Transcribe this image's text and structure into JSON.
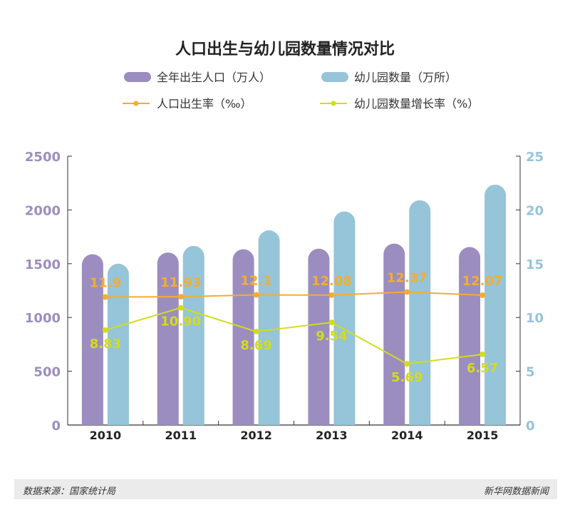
{
  "chart_data": {
    "type": "bar",
    "title": "人口出生与幼儿园数量情况对比",
    "categories": [
      "2010",
      "2011",
      "2012",
      "2013",
      "2014",
      "2015"
    ],
    "series": [
      {
        "name": "全年出生人口（万人）",
        "kind": "bar",
        "axis": "left",
        "color": "#9b8dc0",
        "values": [
          1588,
          1604,
          1635,
          1640,
          1687,
          1655
        ]
      },
      {
        "name": "幼儿园数量（万所）",
        "kind": "bar",
        "axis": "left",
        "color": "#96c4d8",
        "values": [
          1500,
          1665,
          1810,
          1985,
          2090,
          2235
        ]
      },
      {
        "name": "人口出生率（‰）",
        "kind": "line",
        "axis": "right",
        "color": "#f5ad2f",
        "values": [
          11.9,
          11.93,
          12.1,
          12.08,
          12.37,
          12.07
        ],
        "labels": [
          "11.9",
          "11.93",
          "12.1",
          "12.08",
          "12.37",
          "12.07"
        ]
      },
      {
        "name": "幼儿园数量增长率（%）",
        "kind": "line",
        "axis": "right",
        "color": "#d4dc1a",
        "values": [
          8.83,
          10.9,
          8.69,
          9.54,
          5.69,
          6.57
        ],
        "labels": [
          "8.83",
          "10.90",
          "8.69",
          "9.54",
          "5.69",
          "6.57"
        ]
      }
    ],
    "left_axis": {
      "range": [
        0,
        2500
      ],
      "ticks": [
        "0",
        "500",
        "1000",
        "1500",
        "2000",
        "2500"
      ],
      "color": "#9b8dc0"
    },
    "right_axis": {
      "range": [
        0,
        25
      ],
      "ticks": [
        "0",
        "5",
        "10",
        "15",
        "20",
        "25"
      ],
      "color": "#96c4d8"
    },
    "legend_placement": "top"
  },
  "footer": {
    "source": "数据来源：国家统计局",
    "brand": "新华网数据新闻"
  }
}
